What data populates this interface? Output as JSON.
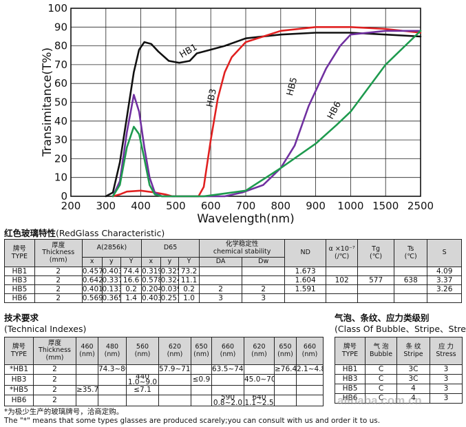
{
  "chart_data": {
    "type": "line",
    "xlabel": "Wavelength(nm)",
    "ylabel": "Transimitance(T%)",
    "xticks": [
      200,
      300,
      400,
      500,
      600,
      700,
      800,
      900,
      1000,
      1500,
      2500
    ],
    "yticks": [
      0,
      10,
      20,
      30,
      40,
      50,
      60,
      70,
      80,
      90,
      100
    ],
    "xlim": [
      200,
      2500
    ],
    "ylim": [
      0,
      100
    ],
    "x_scale": "piecewise: linear 200-1000 (100 nm per division), then 1500 and 2500 divisions",
    "grid": true,
    "legend": "none; series labels written on the curves",
    "series": [
      {
        "name": "HB1",
        "color": "#111111",
        "points": [
          [
            300,
            0
          ],
          [
            320,
            2
          ],
          [
            340,
            18
          ],
          [
            360,
            42
          ],
          [
            380,
            66
          ],
          [
            395,
            78
          ],
          [
            410,
            82
          ],
          [
            430,
            81
          ],
          [
            450,
            77
          ],
          [
            480,
            72
          ],
          [
            510,
            71
          ],
          [
            540,
            72
          ],
          [
            560,
            76
          ],
          [
            600,
            78
          ],
          [
            640,
            80
          ],
          [
            700,
            84
          ],
          [
            800,
            86
          ],
          [
            900,
            87
          ],
          [
            1000,
            87
          ],
          [
            1500,
            86
          ],
          [
            2500,
            85
          ]
        ]
      },
      {
        "name": "HB3",
        "color": "#e02020",
        "points": [
          [
            320,
            0
          ],
          [
            340,
            1
          ],
          [
            360,
            2.5
          ],
          [
            400,
            3
          ],
          [
            440,
            2
          ],
          [
            470,
            1
          ],
          [
            490,
            0
          ],
          [
            565,
            0
          ],
          [
            580,
            5
          ],
          [
            600,
            30
          ],
          [
            620,
            52
          ],
          [
            640,
            66
          ],
          [
            660,
            74
          ],
          [
            700,
            82
          ],
          [
            750,
            85
          ],
          [
            800,
            88
          ],
          [
            900,
            90
          ],
          [
            1000,
            90
          ],
          [
            1500,
            89
          ],
          [
            2500,
            87
          ]
        ]
      },
      {
        "name": "HB5",
        "color": "#7030a0",
        "points": [
          [
            320,
            0
          ],
          [
            340,
            8
          ],
          [
            360,
            34
          ],
          [
            380,
            54
          ],
          [
            395,
            45
          ],
          [
            410,
            26
          ],
          [
            425,
            10
          ],
          [
            440,
            2
          ],
          [
            460,
            0
          ],
          [
            640,
            0
          ],
          [
            690,
            2
          ],
          [
            750,
            6
          ],
          [
            800,
            15
          ],
          [
            840,
            27
          ],
          [
            880,
            48
          ],
          [
            930,
            68
          ],
          [
            970,
            80
          ],
          [
            1000,
            86
          ],
          [
            1500,
            88
          ],
          [
            2500,
            88
          ]
        ]
      },
      {
        "name": "HB6",
        "color": "#1e9a4e",
        "points": [
          [
            320,
            0
          ],
          [
            340,
            6
          ],
          [
            360,
            26
          ],
          [
            380,
            37
          ],
          [
            395,
            33
          ],
          [
            410,
            20
          ],
          [
            425,
            6
          ],
          [
            440,
            1
          ],
          [
            460,
            0
          ],
          [
            580,
            0
          ],
          [
            620,
            1
          ],
          [
            700,
            3
          ],
          [
            800,
            15
          ],
          [
            900,
            28
          ],
          [
            960,
            38
          ],
          [
            1000,
            45
          ],
          [
            1500,
            70
          ],
          [
            2500,
            88
          ]
        ]
      }
    ],
    "labels": [
      {
        "text": "HB1",
        "x": 540,
        "y": 76
      },
      {
        "text": "HB3",
        "x": 610,
        "y": 52
      },
      {
        "text": "HB5",
        "x": 840,
        "y": 58
      },
      {
        "text": "HB6",
        "x": 960,
        "y": 45
      }
    ]
  },
  "section1": {
    "title": "红色玻璃特性",
    "subtitle": "(RedGlass Characteristic)"
  },
  "section2": {
    "title": "技术要求",
    "subtitle": "(Technical Indexes)"
  },
  "section3": {
    "title": "气泡、条纹、应力类级别",
    "subtitle": "(Class Of Bubble、Stripe、Stress)"
  },
  "table1": {
    "columns": [
      38,
      60,
      25,
      24,
      26,
      24,
      23,
      26,
      54,
      54,
      52,
      40,
      46,
      42,
      43
    ],
    "rows": [
      {
        "cls": "hdr",
        "cells": [
          {
            "text": "牌号\nTYPE",
            "rs": 2
          },
          {
            "text": "厚度\nThickness\n(mm)",
            "rs": 2
          },
          {
            "text": "A(2856k)",
            "cs": 3
          },
          {
            "text": "D65",
            "cs": 3
          },
          {
            "text": "化学稳定性\nchemical stability",
            "cs": 2
          },
          {
            "text": "ND",
            "rs": 2
          },
          {
            "text": "α ×10⁻⁷\n(/℃)",
            "rs": 2
          },
          {
            "text": "Tg\n(℃)",
            "rs": 2
          },
          {
            "text": "Ts\n(℃)",
            "rs": 2
          },
          {
            "text": "S",
            "rs": 2
          }
        ]
      },
      {
        "cls": "hdr",
        "cells": [
          {
            "text": "x"
          },
          {
            "text": "y"
          },
          {
            "text": "Y"
          },
          {
            "text": "x"
          },
          {
            "text": "y"
          },
          {
            "text": "Y"
          },
          {
            "text": "DA"
          },
          {
            "text": "Dw"
          }
        ]
      },
      {
        "cls": "body",
        "cells": [
          {
            "text": "HB1"
          },
          {
            "text": "2"
          },
          {
            "text": "0.457"
          },
          {
            "text": "0.403"
          },
          {
            "text": "74.4"
          },
          {
            "text": "0.319"
          },
          {
            "text": "0.325"
          },
          {
            "text": "73.2"
          },
          {
            "text": ""
          },
          {
            "text": ""
          },
          {
            "text": "1.673"
          },
          {
            "text": ""
          },
          {
            "text": ""
          },
          {
            "text": ""
          },
          {
            "text": "4.09"
          }
        ]
      },
      {
        "cls": "body",
        "cells": [
          {
            "text": "HB3"
          },
          {
            "text": "2"
          },
          {
            "text": "0.642"
          },
          {
            "text": "0.337"
          },
          {
            "text": "16.6"
          },
          {
            "text": "0.578"
          },
          {
            "text": "0.324"
          },
          {
            "text": "11.1"
          },
          {
            "text": ""
          },
          {
            "text": ""
          },
          {
            "text": "1.604"
          },
          {
            "text": "102"
          },
          {
            "text": "577"
          },
          {
            "text": "638"
          },
          {
            "text": "3.37"
          }
        ]
      },
      {
        "cls": "body",
        "cells": [
          {
            "text": "HB5"
          },
          {
            "text": "2"
          },
          {
            "text": "0.401"
          },
          {
            "text": "0.133"
          },
          {
            "text": "0.2"
          },
          {
            "text": "0.204"
          },
          {
            "text": "0.039"
          },
          {
            "text": "0.2"
          },
          {
            "text": "2"
          },
          {
            "text": "2"
          },
          {
            "text": "1.591"
          },
          {
            "text": ""
          },
          {
            "text": ""
          },
          {
            "text": ""
          },
          {
            "text": "3.26"
          }
        ]
      },
      {
        "cls": "body",
        "cells": [
          {
            "text": "HB6"
          },
          {
            "text": "2"
          },
          {
            "text": "0.569"
          },
          {
            "text": "0.365"
          },
          {
            "text": "1.4"
          },
          {
            "text": "0.403"
          },
          {
            "text": "0.251"
          },
          {
            "text": "1.0"
          },
          {
            "text": "3"
          },
          {
            "text": "3"
          },
          {
            "text": ""
          },
          {
            "text": ""
          },
          {
            "text": ""
          },
          {
            "text": ""
          },
          {
            "text": ""
          }
        ]
      }
    ]
  },
  "table2": {
    "columns": [
      42,
      62,
      32,
      41,
      47,
      47,
      30,
      47,
      44,
      32,
      39
    ],
    "rows": [
      {
        "cls": "hdr",
        "cells": [
          {
            "text": "牌号\nTYPE"
          },
          {
            "text": "厚度\nThickness\n(mm)"
          },
          {
            "text": "460\n(nm)"
          },
          {
            "text": "480\n(nm)"
          },
          {
            "text": "560\n(nm)"
          },
          {
            "text": "620\n(nm)"
          },
          {
            "text": "650\n(nm)"
          },
          {
            "text": "660\n(nm)"
          },
          {
            "text": "620\n(nm)"
          },
          {
            "text": "650\n(nm)"
          },
          {
            "text": "660\n(nm)"
          }
        ]
      },
      {
        "cls": "body",
        "cells": [
          {
            "text": "*HB1"
          },
          {
            "text": "2"
          },
          {
            "text": ""
          },
          {
            "text": "74.3~80.7",
            "tiny": true
          },
          {
            "text": ""
          },
          {
            "text": "57.9~71.3",
            "tiny": true
          },
          {
            "text": ""
          },
          {
            "text": "63.5~74.7",
            "tiny": true
          },
          {
            "text": ""
          },
          {
            "text": "≥76.4"
          },
          {
            "text": "2.1~4.8"
          }
        ]
      },
      {
        "cls": "body",
        "cells": [
          {
            "text": "HB3"
          },
          {
            "text": "2"
          },
          {
            "text": ""
          },
          {
            "text": ""
          },
          {
            "text": "440\n1.0~9.0",
            "tiny": true
          },
          {
            "text": ""
          },
          {
            "text": "≤0.9"
          },
          {
            "text": ""
          },
          {
            "text": "45.0~70.0",
            "tiny": true
          },
          {
            "text": ""
          },
          {
            "text": ""
          }
        ]
      },
      {
        "cls": "body",
        "cells": [
          {
            "text": "*HB5"
          },
          {
            "text": "2"
          },
          {
            "text": "≥35.7"
          },
          {
            "text": ""
          },
          {
            "text": "≤7.1"
          },
          {
            "text": ""
          },
          {
            "text": ""
          },
          {
            "text": ""
          },
          {
            "text": ""
          },
          {
            "text": ""
          },
          {
            "text": ""
          }
        ]
      },
      {
        "cls": "body",
        "cells": [
          {
            "text": "HB6"
          },
          {
            "text": "2"
          },
          {
            "text": ""
          },
          {
            "text": ""
          },
          {
            "text": ""
          },
          {
            "text": ""
          },
          {
            "text": ""
          },
          {
            "text": "590\n0.8~2.0",
            "tiny": true
          },
          {
            "text": "640\n1.1~2.5",
            "tiny": true
          },
          {
            "text": ""
          },
          {
            "text": ""
          }
        ]
      }
    ]
  },
  "table3": {
    "columns": [
      44,
      46,
      48,
      47
    ],
    "rows": [
      {
        "cls": "hdr",
        "cells": [
          {
            "text": "牌号\nTYPE"
          },
          {
            "text": "气 泡\nBubble"
          },
          {
            "text": "条 纹\nStripe"
          },
          {
            "text": "应 力\nStress"
          }
        ]
      },
      {
        "cls": "body",
        "cells": [
          {
            "text": "HB1"
          },
          {
            "text": "C"
          },
          {
            "text": "3C"
          },
          {
            "text": "3"
          }
        ]
      },
      {
        "cls": "body",
        "cells": [
          {
            "text": "HB3"
          },
          {
            "text": "C"
          },
          {
            "text": "3C"
          },
          {
            "text": "3"
          }
        ]
      },
      {
        "cls": "body",
        "cells": [
          {
            "text": "HB5"
          },
          {
            "text": "C"
          },
          {
            "text": "4"
          },
          {
            "text": "3"
          }
        ]
      },
      {
        "cls": "body",
        "cells": [
          {
            "text": "HB6"
          },
          {
            "text": "C"
          },
          {
            "text": "4"
          },
          {
            "text": "3"
          }
        ]
      }
    ]
  },
  "footnote_cn": "*为极少生产的玻璃牌号，洽商定购。",
  "footnote_en": "The  \"*\"  means that some types glasses are produced scarely;you can consult with us and order it to us.",
  "watermark": "alibaba.com.cn"
}
